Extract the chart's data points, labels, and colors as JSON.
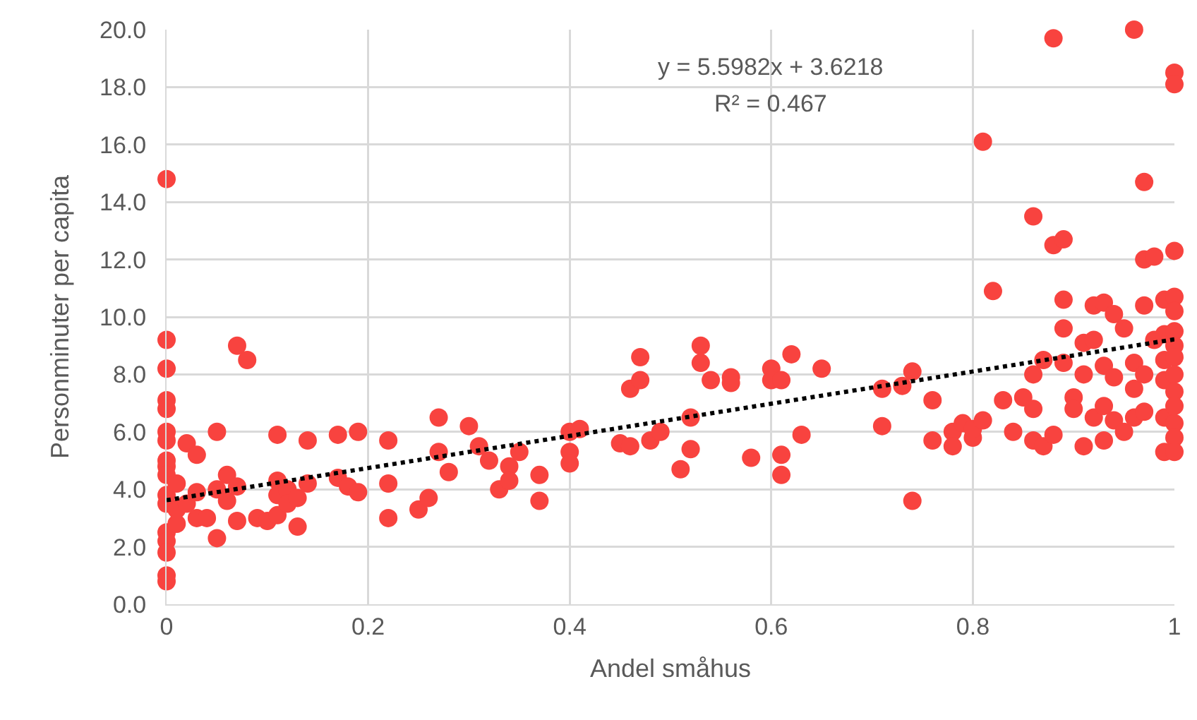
{
  "chart_data": {
    "type": "scatter",
    "xlabel": "Andel småhus",
    "ylabel": "Personminuter per capita",
    "xlim": [
      0,
      1
    ],
    "ylim": [
      0,
      20
    ],
    "xticks": [
      0,
      0.2,
      0.4,
      0.6,
      0.8,
      1
    ],
    "yticks": [
      {
        "value": 0,
        "label": "0.0"
      },
      {
        "value": 2,
        "label": "2.0"
      },
      {
        "value": 4,
        "label": "4.0"
      },
      {
        "value": 6,
        "label": "6.0"
      },
      {
        "value": 8,
        "label": "8.0"
      },
      {
        "value": 10,
        "label": "10.0"
      },
      {
        "value": 12,
        "label": "12.0"
      },
      {
        "value": 14,
        "label": "14.0"
      },
      {
        "value": 16,
        "label": "16.0"
      },
      {
        "value": 18,
        "label": "18.0"
      },
      {
        "value": 20,
        "label": "20.0"
      }
    ],
    "grid": true,
    "marker": "circle",
    "annotations": [
      "y = 5.5982x + 3.6218",
      "R² = 0.467"
    ],
    "series": [
      {
        "color": "#f8433f",
        "x": [
          0,
          0,
          0,
          0,
          0,
          0,
          0,
          0,
          0,
          0,
          0,
          0,
          0,
          0,
          0,
          0,
          0,
          0.01,
          0.01,
          0.01,
          0.02,
          0.02,
          0.03,
          0.03,
          0.03,
          0.04,
          0.05,
          0.05,
          0.05,
          0.06,
          0.06,
          0.07,
          0.07,
          0.07,
          0.08,
          0.09,
          0.1,
          0.11,
          0.11,
          0.11,
          0.11,
          0.12,
          0.12,
          0.13,
          0.13,
          0.14,
          0.14,
          0.17,
          0.17,
          0.18,
          0.19,
          0.19,
          0.22,
          0.22,
          0.22,
          0.25,
          0.26,
          0.27,
          0.27,
          0.28,
          0.3,
          0.31,
          0.32,
          0.33,
          0.34,
          0.34,
          0.35,
          0.37,
          0.37,
          0.4,
          0.4,
          0.4,
          0.41,
          0.45,
          0.46,
          0.46,
          0.47,
          0.47,
          0.48,
          0.49,
          0.51,
          0.52,
          0.52,
          0.53,
          0.53,
          0.54,
          0.56,
          0.56,
          0.58,
          0.6,
          0.6,
          0.61,
          0.61,
          0.61,
          0.62,
          0.63,
          0.65,
          0.71,
          0.71,
          0.73,
          0.74,
          0.74,
          0.76,
          0.76,
          0.78,
          0.78,
          0.79,
          0.8,
          0.8,
          0.81,
          0.81,
          0.82,
          0.83,
          0.84,
          0.85,
          0.86,
          0.86,
          0.86,
          0.86,
          0.87,
          0.87,
          0.88,
          0.88,
          0.88,
          0.89,
          0.89,
          0.89,
          0.89,
          0.9,
          0.9,
          0.91,
          0.91,
          0.91,
          0.92,
          0.92,
          0.92,
          0.93,
          0.93,
          0.93,
          0.93,
          0.94,
          0.94,
          0.94,
          0.95,
          0.95,
          0.96,
          0.96,
          0.96,
          0.96,
          0.97,
          0.97,
          0.97,
          0.97,
          0.97,
          0.98,
          0.98,
          0.99,
          0.99,
          0.99,
          0.99,
          0.99,
          0.99,
          1,
          1,
          1,
          1,
          1,
          1,
          1,
          1,
          1,
          1,
          1,
          1,
          1,
          1
        ],
        "values": [
          14.8,
          9.2,
          8.2,
          7.1,
          6.8,
          6.0,
          5.7,
          5.0,
          4.8,
          4.5,
          3.8,
          3.5,
          2.5,
          2.2,
          1.8,
          1.0,
          0.8,
          4.2,
          3.3,
          2.8,
          5.6,
          3.5,
          5.2,
          3.9,
          3.0,
          3.0,
          6.0,
          4.0,
          2.3,
          4.5,
          3.6,
          9.0,
          4.1,
          2.9,
          8.5,
          3.0,
          2.9,
          5.9,
          4.3,
          3.8,
          3.1,
          4.0,
          3.5,
          3.7,
          2.7,
          5.7,
          4.2,
          5.9,
          4.4,
          4.1,
          6.0,
          3.9,
          5.7,
          4.2,
          3.0,
          3.3,
          3.7,
          6.5,
          5.3,
          4.6,
          6.2,
          5.5,
          5.0,
          4.0,
          4.8,
          4.3,
          5.3,
          4.5,
          3.6,
          6.0,
          5.3,
          4.9,
          6.1,
          5.6,
          5.5,
          7.5,
          8.6,
          7.8,
          5.7,
          6.0,
          4.7,
          6.5,
          5.4,
          9.0,
          8.4,
          7.8,
          7.9,
          7.7,
          5.1,
          8.2,
          7.8,
          7.8,
          5.2,
          4.5,
          8.7,
          5.9,
          8.2,
          7.5,
          6.2,
          7.6,
          8.1,
          3.6,
          7.1,
          5.7,
          6.0,
          5.5,
          6.3,
          5.8,
          6.1,
          16.1,
          6.4,
          10.9,
          7.1,
          6.0,
          7.2,
          13.5,
          6.8,
          8.0,
          5.7,
          8.5,
          5.5,
          19.7,
          12.5,
          5.9,
          12.7,
          10.6,
          9.6,
          8.4,
          7.2,
          6.8,
          9.1,
          8.0,
          5.5,
          10.4,
          9.2,
          6.5,
          10.5,
          8.3,
          6.9,
          5.7,
          10.1,
          7.9,
          6.4,
          9.6,
          6.0,
          20.0,
          8.4,
          7.5,
          6.5,
          14.7,
          12.0,
          10.4,
          8.0,
          6.7,
          12.1,
          9.2,
          10.6,
          9.4,
          8.5,
          7.8,
          6.5,
          5.3,
          18.5,
          18.1,
          12.3,
          10.7,
          10.2,
          9.5,
          9.0,
          8.6,
          8.0,
          7.4,
          6.9,
          6.3,
          5.8,
          5.3
        ]
      },
      {
        "type": "line",
        "color": "#000000",
        "line_style": "dotted",
        "marker": "none",
        "x": [
          0,
          1
        ],
        "values": [
          3.62,
          9.22
        ]
      }
    ]
  }
}
